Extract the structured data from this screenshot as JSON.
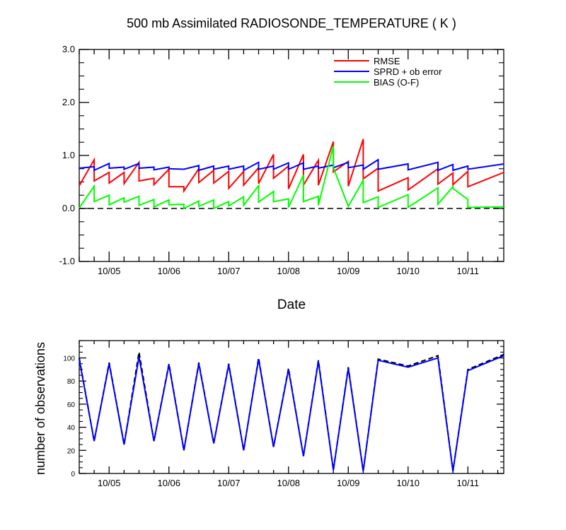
{
  "top_chart": {
    "title": "500 mb Assimilated RADIOSONDE_TEMPERATURE ( K )",
    "xlabel": "Date"
  },
  "bottom_chart": {
    "ylabel": "number of observations"
  },
  "chart_data": [
    {
      "type": "line",
      "title": "500 mb Assimilated RADIOSONDE_TEMPERATURE ( K )",
      "xlabel": "Date",
      "ylabel": "",
      "x_unit": "days (Oct 4.5 to Oct 11.6)",
      "xlim": [
        4.5,
        11.6
      ],
      "ylim": [
        -1.0,
        3.0
      ],
      "x_ticks": [
        {
          "pos": 5,
          "label": "10/05"
        },
        {
          "pos": 6,
          "label": "10/06"
        },
        {
          "pos": 7,
          "label": "10/07"
        },
        {
          "pos": 8,
          "label": "10/08"
        },
        {
          "pos": 9,
          "label": "10/09"
        },
        {
          "pos": 10,
          "label": "10/10"
        },
        {
          "pos": 11,
          "label": "10/11"
        }
      ],
      "y_ticks": [
        {
          "pos": 3,
          "label": "3.0"
        },
        {
          "pos": 2,
          "label": "2.0"
        },
        {
          "pos": 1,
          "label": "1.0"
        },
        {
          "pos": 0,
          "label": "0.0"
        },
        {
          "pos": -1,
          "label": "-1.0"
        }
      ],
      "reference_line": {
        "y": 0.0,
        "style": "dashed"
      },
      "legend_position": "top-right",
      "series": [
        {
          "name": "RMSE",
          "color": "#ff0000",
          "points": [
            [
              4.5,
              0.43
            ],
            [
              4.75,
              0.92
            ],
            [
              4.75,
              0.52
            ],
            [
              5.0,
              0.68
            ],
            [
              5.0,
              0.48
            ],
            [
              5.25,
              0.68
            ],
            [
              5.25,
              0.47
            ],
            [
              5.5,
              0.87
            ],
            [
              5.5,
              0.52
            ],
            [
              5.75,
              0.57
            ],
            [
              5.75,
              0.45
            ],
            [
              6.0,
              0.74
            ],
            [
              6.0,
              0.41
            ],
            [
              6.25,
              0.41
            ],
            [
              6.25,
              0.33
            ],
            [
              6.5,
              0.75
            ],
            [
              6.5,
              0.49
            ],
            [
              6.75,
              0.72
            ],
            [
              6.75,
              0.48
            ],
            [
              7.0,
              0.7
            ],
            [
              7.0,
              0.38
            ],
            [
              7.25,
              0.7
            ],
            [
              7.25,
              0.44
            ],
            [
              7.5,
              0.77
            ],
            [
              7.5,
              0.47
            ],
            [
              7.75,
              1.02
            ],
            [
              7.75,
              0.57
            ],
            [
              8.0,
              0.8
            ],
            [
              8.0,
              0.37
            ],
            [
              8.25,
              1.02
            ],
            [
              8.25,
              0.44
            ],
            [
              8.5,
              0.91
            ],
            [
              8.5,
              0.44
            ],
            [
              8.75,
              1.26
            ],
            [
              8.75,
              0.69
            ],
            [
              9.0,
              0.89
            ],
            [
              9.0,
              0.42
            ],
            [
              9.25,
              1.31
            ],
            [
              9.25,
              0.56
            ],
            [
              9.5,
              0.76
            ],
            [
              9.5,
              0.33
            ],
            [
              10.0,
              0.58
            ],
            [
              10.0,
              0.35
            ],
            [
              10.5,
              0.75
            ],
            [
              10.5,
              0.46
            ],
            [
              10.75,
              0.67
            ],
            [
              10.75,
              0.45
            ],
            [
              11.0,
              0.7
            ],
            [
              11.0,
              0.41
            ],
            [
              11.6,
              0.68
            ]
          ]
        },
        {
          "name": "SPRD + ob error",
          "color": "#0000ff",
          "points": [
            [
              4.5,
              0.76
            ],
            [
              4.75,
              0.79
            ],
            [
              4.75,
              0.72
            ],
            [
              5.0,
              0.85
            ],
            [
              5.0,
              0.76
            ],
            [
              5.25,
              0.78
            ],
            [
              5.25,
              0.74
            ],
            [
              5.5,
              0.85
            ],
            [
              5.5,
              0.76
            ],
            [
              5.75,
              0.78
            ],
            [
              5.75,
              0.73
            ],
            [
              6.0,
              0.78
            ],
            [
              6.0,
              0.75
            ],
            [
              6.25,
              0.74
            ],
            [
              6.25,
              0.74
            ],
            [
              6.5,
              0.81
            ],
            [
              6.5,
              0.72
            ],
            [
              6.75,
              0.8
            ],
            [
              6.75,
              0.74
            ],
            [
              7.0,
              0.8
            ],
            [
              7.0,
              0.74
            ],
            [
              7.25,
              0.8
            ],
            [
              7.25,
              0.72
            ],
            [
              7.5,
              0.87
            ],
            [
              7.5,
              0.74
            ],
            [
              7.75,
              0.8
            ],
            [
              7.75,
              0.74
            ],
            [
              8.0,
              0.86
            ],
            [
              8.0,
              0.74
            ],
            [
              8.25,
              0.86
            ],
            [
              8.25,
              0.74
            ],
            [
              8.5,
              0.8
            ],
            [
              8.5,
              0.76
            ],
            [
              8.75,
              0.82
            ],
            [
              8.75,
              0.77
            ],
            [
              9.0,
              0.87
            ],
            [
              9.0,
              0.77
            ],
            [
              9.25,
              0.82
            ],
            [
              9.25,
              0.74
            ],
            [
              9.5,
              0.92
            ],
            [
              9.5,
              0.74
            ],
            [
              10.0,
              0.84
            ],
            [
              10.0,
              0.73
            ],
            [
              10.5,
              0.87
            ],
            [
              10.5,
              0.72
            ],
            [
              10.75,
              0.83
            ],
            [
              10.75,
              0.72
            ],
            [
              11.0,
              0.8
            ],
            [
              11.0,
              0.74
            ],
            [
              11.6,
              0.84
            ]
          ]
        },
        {
          "name": "BIAS (O-F)",
          "color": "#00ff00",
          "points": [
            [
              4.5,
              0.01
            ],
            [
              4.75,
              0.42
            ],
            [
              4.75,
              0.13
            ],
            [
              5.0,
              0.25
            ],
            [
              5.0,
              0.07
            ],
            [
              5.25,
              0.2
            ],
            [
              5.25,
              0.12
            ],
            [
              5.5,
              0.23
            ],
            [
              5.5,
              0.06
            ],
            [
              5.75,
              0.17
            ],
            [
              5.75,
              0.03
            ],
            [
              6.0,
              0.16
            ],
            [
              6.0,
              0.07
            ],
            [
              6.25,
              0.08
            ],
            [
              6.25,
              0.0
            ],
            [
              6.5,
              0.14
            ],
            [
              6.5,
              0.04
            ],
            [
              6.75,
              0.16
            ],
            [
              6.75,
              0.0
            ],
            [
              7.0,
              0.13
            ],
            [
              7.0,
              0.05
            ],
            [
              7.25,
              0.22
            ],
            [
              7.25,
              0.06
            ],
            [
              7.5,
              0.43
            ],
            [
              7.5,
              0.12
            ],
            [
              7.75,
              0.32
            ],
            [
              7.75,
              0.13
            ],
            [
              8.0,
              0.18
            ],
            [
              8.0,
              0.02
            ],
            [
              8.25,
              0.63
            ],
            [
              8.25,
              0.13
            ],
            [
              8.5,
              0.23
            ],
            [
              8.5,
              0.06
            ],
            [
              8.75,
              1.18
            ],
            [
              8.75,
              0.77
            ],
            [
              9.0,
              0.04
            ],
            [
              9.25,
              0.53
            ],
            [
              9.25,
              0.11
            ],
            [
              9.5,
              0.22
            ],
            [
              9.5,
              0.02
            ],
            [
              10.0,
              0.26
            ],
            [
              10.0,
              0.02
            ],
            [
              10.5,
              0.39
            ],
            [
              10.5,
              0.08
            ],
            [
              10.75,
              0.41
            ],
            [
              10.75,
              0.38
            ],
            [
              11.0,
              0.17
            ],
            [
              11.0,
              0.02
            ],
            [
              11.6,
              0.03
            ]
          ]
        }
      ]
    },
    {
      "type": "line",
      "title": "",
      "xlabel": "",
      "ylabel": "number of observations",
      "x_unit": "days (Oct 4.5 to Oct 11.6)",
      "xlim": [
        4.5,
        11.6
      ],
      "ylim": [
        0,
        115
      ],
      "x_ticks": [
        {
          "pos": 5,
          "label": "10/05"
        },
        {
          "pos": 6,
          "label": "10/06"
        },
        {
          "pos": 7,
          "label": "10/07"
        },
        {
          "pos": 8,
          "label": "10/08"
        },
        {
          "pos": 9,
          "label": "10/09"
        },
        {
          "pos": 10,
          "label": "10/10"
        },
        {
          "pos": 11,
          "label": "10/11"
        }
      ],
      "y_ticks": [
        {
          "pos": 100,
          "label": "100"
        },
        {
          "pos": 80,
          "label": "80"
        },
        {
          "pos": 60,
          "label": "60"
        },
        {
          "pos": 40,
          "label": "40"
        },
        {
          "pos": 20,
          "label": "20"
        },
        {
          "pos": 0,
          "label": "0"
        }
      ],
      "series": [
        {
          "name": "",
          "color": "#000000",
          "style": "dashed",
          "points": [
            [
              4.5,
              100
            ],
            [
              4.75,
              28
            ],
            [
              5.0,
              96
            ],
            [
              5.25,
              25
            ],
            [
              5.5,
              105
            ],
            [
              5.75,
              28
            ],
            [
              6.0,
              95
            ],
            [
              6.25,
              20
            ],
            [
              6.5,
              96
            ],
            [
              6.75,
              26
            ],
            [
              7.0,
              95
            ],
            [
              7.25,
              20
            ],
            [
              7.5,
              100
            ],
            [
              7.75,
              23
            ],
            [
              8.0,
              91
            ],
            [
              8.25,
              15
            ],
            [
              8.5,
              98
            ],
            [
              8.75,
              3
            ],
            [
              9.0,
              92
            ],
            [
              9.25,
              2
            ],
            [
              9.5,
              99
            ],
            [
              10.0,
              93
            ],
            [
              10.5,
              102
            ],
            [
              10.75,
              2
            ],
            [
              11.0,
              90
            ],
            [
              11.6,
              103
            ]
          ]
        },
        {
          "name": "",
          "color": "#0000ff",
          "style": "solid",
          "points": [
            [
              4.5,
              99
            ],
            [
              4.75,
              28
            ],
            [
              5.0,
              95
            ],
            [
              5.25,
              25
            ],
            [
              5.5,
              101
            ],
            [
              5.75,
              28
            ],
            [
              6.0,
              94
            ],
            [
              6.25,
              20
            ],
            [
              6.5,
              95
            ],
            [
              6.75,
              26
            ],
            [
              7.0,
              94
            ],
            [
              7.25,
              20
            ],
            [
              7.5,
              99
            ],
            [
              7.75,
              23
            ],
            [
              8.0,
              90
            ],
            [
              8.25,
              15
            ],
            [
              8.5,
              97
            ],
            [
              8.75,
              3
            ],
            [
              9.0,
              91
            ],
            [
              9.25,
              2
            ],
            [
              9.5,
              98
            ],
            [
              10.0,
              92
            ],
            [
              10.5,
              100
            ],
            [
              10.75,
              2
            ],
            [
              11.0,
              89
            ],
            [
              11.6,
              102
            ]
          ]
        }
      ]
    }
  ]
}
